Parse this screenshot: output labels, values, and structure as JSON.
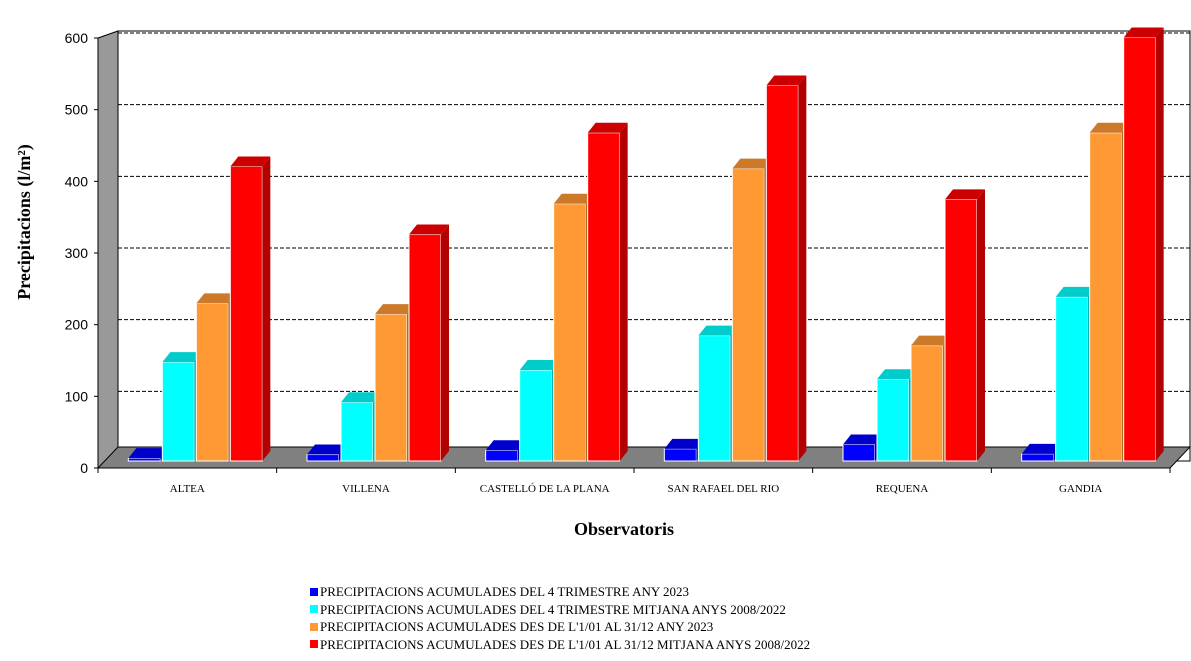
{
  "chart_data": {
    "type": "bar",
    "categories": [
      "ALTEA",
      "VILLENA",
      "CASTELLÓ DE LA PLANA",
      "SAN RAFAEL DEL RIO",
      "REQUENA",
      "GANDIA"
    ],
    "series": [
      {
        "name": "PRECIPITACIONS ACUMULADES DEL 4 TRIMESTRE ANY 2023",
        "color": "#0000ff",
        "values": [
          4,
          9,
          15,
          17,
          23,
          10
        ]
      },
      {
        "name": "PRECIPITACIONS ACUMULADES DEL 4 TRIMESTRE MITJANA ANYS 2008/2022",
        "color": "#00ffff",
        "values": [
          138,
          82,
          127,
          175,
          114,
          229
        ]
      },
      {
        "name": "PRECIPITACIONS ACUMULADES DES DE L'1/01 AL 31/12 ANY 2023",
        "color": "#ff9933",
        "values": [
          220,
          205,
          359,
          408,
          161,
          458
        ]
      },
      {
        "name": "PRECIPITACIONS ACUMULADES DES DE L'1/01 AL 31/12 MITJANA ANYS 2008/2022",
        "color": "#ff0000",
        "values": [
          411,
          316,
          458,
          524,
          365,
          591
        ]
      }
    ],
    "title": "",
    "xlabel": "Observatoris",
    "ylabel": "Precipitacions (l/m²)",
    "ylim": [
      0,
      600
    ],
    "yticks": [
      "0",
      "100",
      "200",
      "300",
      "400",
      "500",
      "600"
    ],
    "grid": true,
    "legend_position": "bottom"
  }
}
